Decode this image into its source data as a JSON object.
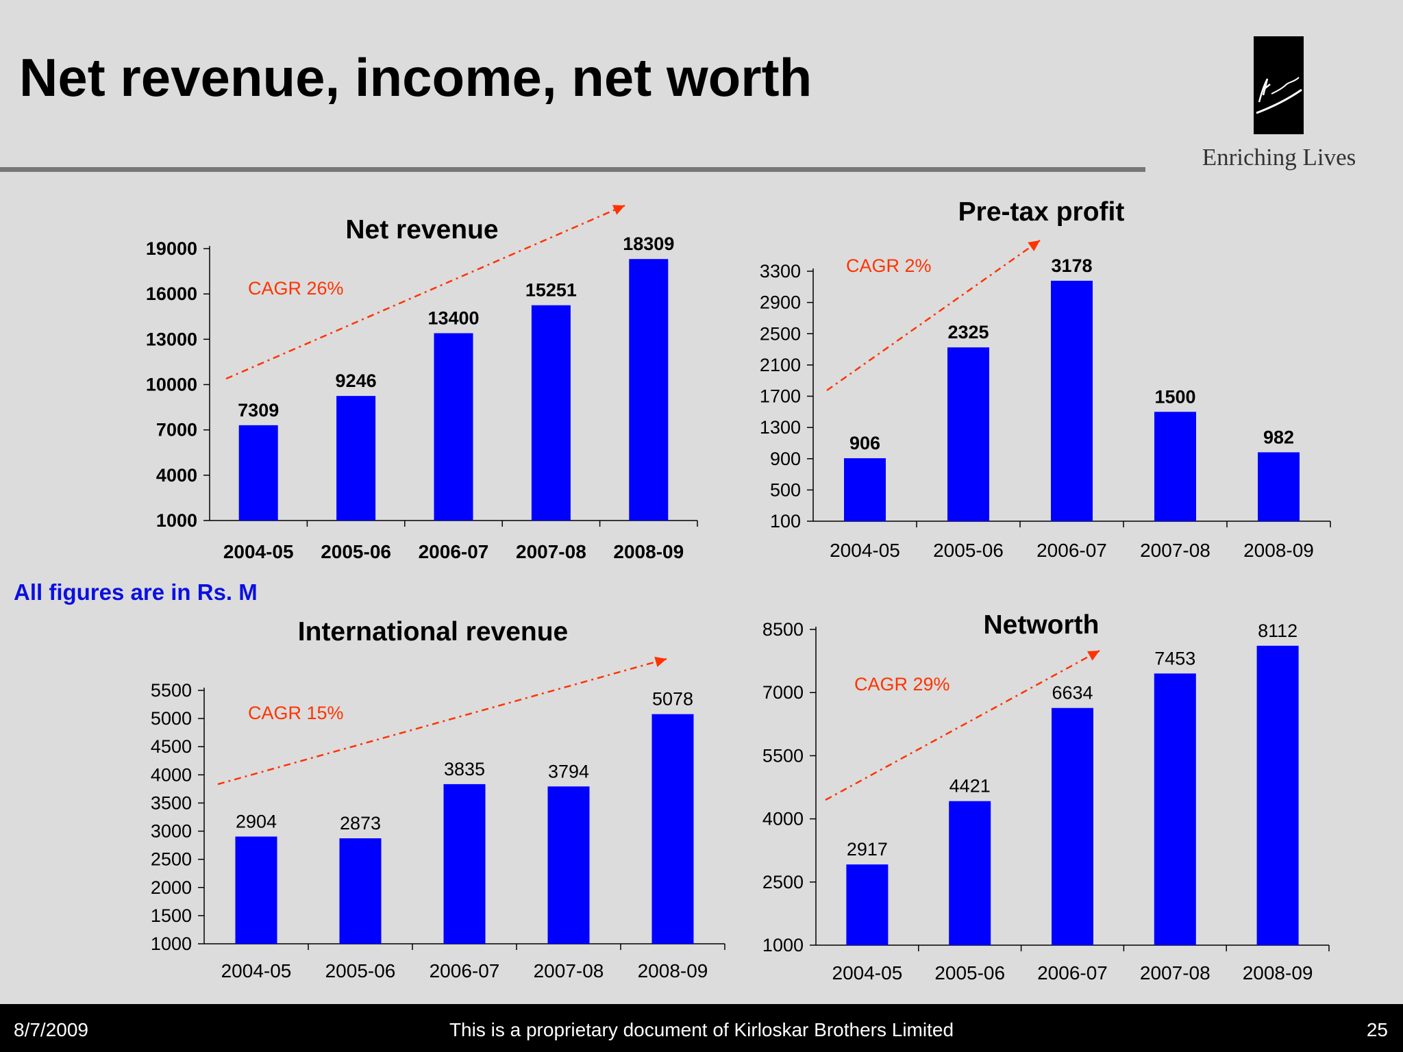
{
  "slide": {
    "title": "Net revenue, income, net worth",
    "units_note": "All figures are in Rs. M"
  },
  "logo": {
    "wordmark": "Kirloskar",
    "tagline": "Enriching Lives"
  },
  "footer": {
    "date": "8/7/2009",
    "text": "This is a proprietary document of Kirloskar Brothers Limited",
    "page": "25"
  },
  "colors": {
    "bar": "#0000ff",
    "cagr": "#ff3300",
    "background": "#dcdcdc"
  },
  "chart_data": [
    {
      "type": "bar",
      "title": "Net revenue",
      "categories": [
        "2004-05",
        "2005-06",
        "2006-07",
        "2007-08",
        "2008-09"
      ],
      "values": [
        7309,
        9246,
        13400,
        15251,
        18309
      ],
      "ylim": [
        1000,
        19000
      ],
      "yticks": [
        1000,
        4000,
        7000,
        10000,
        13000,
        16000,
        19000
      ],
      "annotation": "CAGR 26%",
      "bold_labels": true,
      "grid": false,
      "legend": "none"
    },
    {
      "type": "bar",
      "title": "Pre-tax profit",
      "categories": [
        "2004-05",
        "2005-06",
        "2006-07",
        "2007-08",
        "2008-09"
      ],
      "values": [
        906,
        2325,
        3178,
        1500,
        982
      ],
      "ylim": [
        100,
        3300
      ],
      "yticks": [
        100,
        500,
        900,
        1300,
        1700,
        2100,
        2500,
        2900,
        3300
      ],
      "annotation": "CAGR 2%",
      "bold_labels": false,
      "bold_values": true,
      "grid": false,
      "legend": "none"
    },
    {
      "type": "bar",
      "title": "International revenue",
      "categories": [
        "2004-05",
        "2005-06",
        "2006-07",
        "2007-08",
        "2008-09"
      ],
      "values": [
        2904,
        2873,
        3835,
        3794,
        5078
      ],
      "ylim": [
        1000,
        5500
      ],
      "yticks": [
        1000,
        1500,
        2000,
        2500,
        3000,
        3500,
        4000,
        4500,
        5000,
        5500
      ],
      "annotation": "CAGR 15%",
      "bold_labels": false,
      "bold_values": false,
      "grid": false,
      "legend": "none"
    },
    {
      "type": "bar",
      "title": "Networth",
      "categories": [
        "2004-05",
        "2005-06",
        "2006-07",
        "2007-08",
        "2008-09"
      ],
      "values": [
        2917,
        4421,
        6634,
        7453,
        8112
      ],
      "ylim": [
        1000,
        8500
      ],
      "yticks": [
        1000,
        2500,
        4000,
        5500,
        7000,
        8500
      ],
      "annotation": "CAGR 29%",
      "bold_labels": false,
      "bold_values": false,
      "grid": false,
      "legend": "none"
    }
  ]
}
